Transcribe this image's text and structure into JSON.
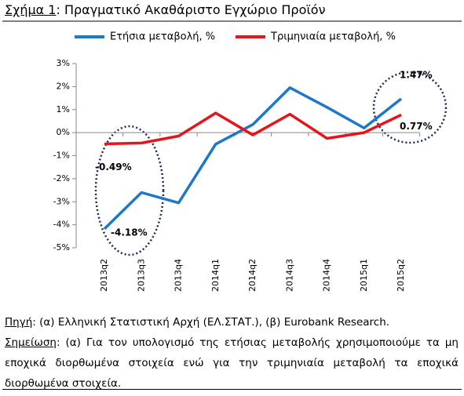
{
  "chart_data": {
    "type": "line",
    "title_prefix": "Σχήμα 1",
    "title": ": Πραγματικό Ακαθάριστο Εγχώριο Προϊόν",
    "categories": [
      "2013q2",
      "2013q3",
      "2013q4",
      "2014q1",
      "2014q2",
      "2014q3",
      "2014q4",
      "2015q1",
      "2015q2"
    ],
    "series": [
      {
        "name": "Ετήσια μεταβολή, %",
        "color": "#1f77c8",
        "values": [
          -4.18,
          -2.6,
          -3.05,
          -0.5,
          0.35,
          1.95,
          1.1,
          0.2,
          1.47
        ],
        "value_labels": [
          "-4.18%",
          null,
          null,
          null,
          null,
          null,
          null,
          null,
          "1.47%"
        ]
      },
      {
        "name": "Τριμηνιαία μεταβολή, %",
        "color": "#e8141c",
        "values": [
          -0.49,
          -0.45,
          -0.15,
          0.85,
          -0.1,
          0.8,
          -0.25,
          0.0,
          0.77
        ],
        "value_labels": [
          "-0.49%",
          null,
          null,
          null,
          null,
          null,
          null,
          null,
          "0.77%"
        ]
      }
    ],
    "ylim": [
      -5,
      3
    ],
    "yticks": [
      {
        "value": -5,
        "label": "-5%"
      },
      {
        "value": -4,
        "label": "-4%"
      },
      {
        "value": -3,
        "label": "-3%"
      },
      {
        "value": -2,
        "label": "-2%"
      },
      {
        "value": -1,
        "label": "-1%"
      },
      {
        "value": 0,
        "label": "0%"
      },
      {
        "value": 1,
        "label": "1%"
      },
      {
        "value": 2,
        "label": "2%"
      },
      {
        "value": 3,
        "label": "3%"
      }
    ],
    "legend": "top"
  },
  "source": {
    "label": "Πηγή",
    "text": ": (α) Ελληνική Στατιστική Αρχή (ΕΛ.ΣΤΑΤ.), (β) Eurobank Research."
  },
  "note": {
    "label": "Σημείωση",
    "text": ": (α) Για τον υπολογισμό της ετήσιας μεταβολής χρησιμοποιούμε τα μη εποχικά διορθωμένα στοιχεία ενώ για την τριμηνιαία μεταβολή τα εποχικά διορθωμένα στοιχεία."
  }
}
